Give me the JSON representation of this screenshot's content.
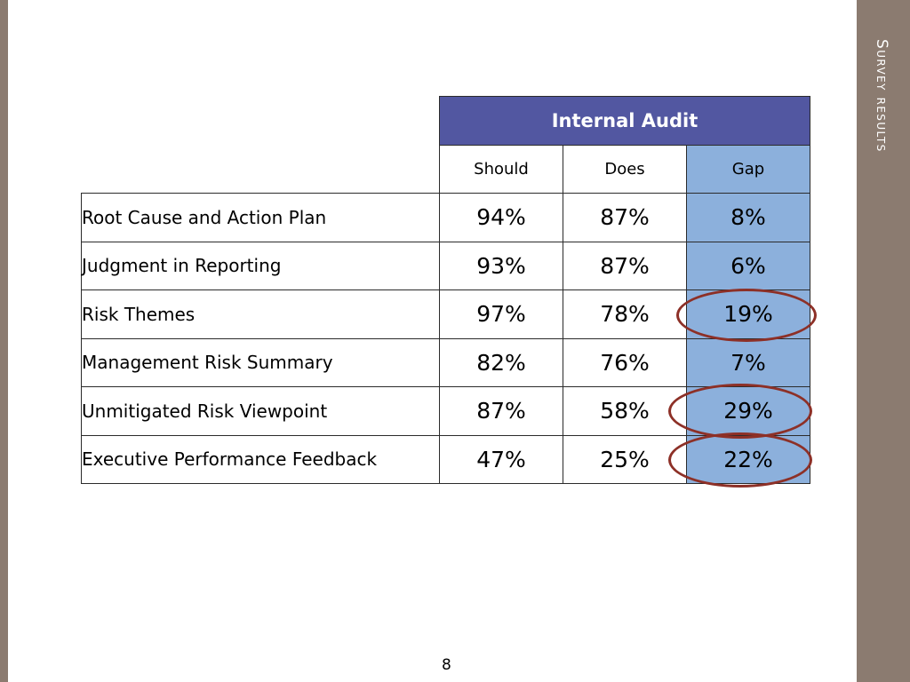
{
  "side_title": "Survey results",
  "table": {
    "group_header": "Internal Audit",
    "columns": [
      "Should",
      "Does",
      "Gap"
    ],
    "rows": [
      {
        "label": "Root Cause and Action Plan",
        "should": "94%",
        "does": "87%",
        "gap": "8%"
      },
      {
        "label": "Judgment in Reporting",
        "should": "93%",
        "does": "87%",
        "gap": "6%"
      },
      {
        "label": "Risk Themes",
        "should": "97%",
        "does": "78%",
        "gap": "19%"
      },
      {
        "label": "Management Risk Summary",
        "should": "82%",
        "does": "76%",
        "gap": "7%"
      },
      {
        "label": "Unmitigated Risk Viewpoint",
        "should": "87%",
        "does": "58%",
        "gap": "29%"
      },
      {
        "label": "Executive Performance Feedback",
        "should": "47%",
        "does": "25%",
        "gap": "22%"
      }
    ],
    "highlighted_gaps": [
      "19%",
      "29%",
      "22%"
    ]
  },
  "page_number": "8",
  "colors": {
    "side_bar": "#8b7b70",
    "header_fill": "#5257a1",
    "gap_fill": "#8cb0dc",
    "highlight_ring": "#8d3027"
  }
}
